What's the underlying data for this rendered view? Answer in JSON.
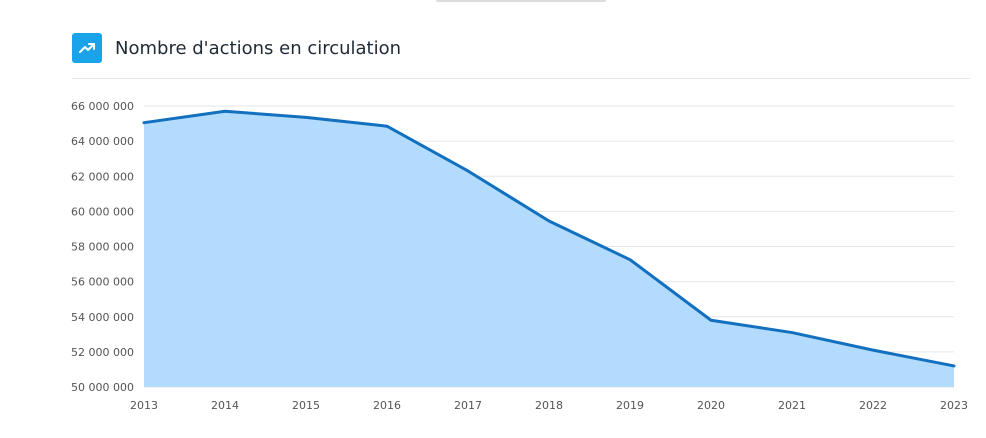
{
  "header": {
    "title": "Nombre d'actions en circulation",
    "icon": "trending-up-icon"
  },
  "colors": {
    "icon_bg": "#1aa3e8",
    "line": "#1270bf",
    "area": "#b2dbfd",
    "grid": "#e6e6e6"
  },
  "chart_data": {
    "type": "area",
    "title": "Nombre d'actions en circulation",
    "xlabel": "",
    "ylabel": "",
    "x": [
      "2013",
      "2014",
      "2015",
      "2016",
      "2017",
      "2018",
      "2019",
      "2020",
      "2021",
      "2022",
      "2023"
    ],
    "values": [
      65050000,
      65700000,
      65350000,
      64850000,
      62300000,
      59450000,
      57250000,
      53800000,
      53100000,
      52100000,
      51200000
    ],
    "ylim": [
      50000000,
      66000000
    ],
    "yticks": [
      {
        "value": 50000000,
        "label": "50 000 000"
      },
      {
        "value": 52000000,
        "label": "52 000 000"
      },
      {
        "value": 54000000,
        "label": "54 000 000"
      },
      {
        "value": 56000000,
        "label": "56 000 000"
      },
      {
        "value": 58000000,
        "label": "58 000 000"
      },
      {
        "value": 60000000,
        "label": "60 000 000"
      },
      {
        "value": 62000000,
        "label": "62 000 000"
      },
      {
        "value": 64000000,
        "label": "64 000 000"
      },
      {
        "value": 66000000,
        "label": "66 000 000"
      }
    ],
    "grid": true,
    "legend": "none"
  }
}
